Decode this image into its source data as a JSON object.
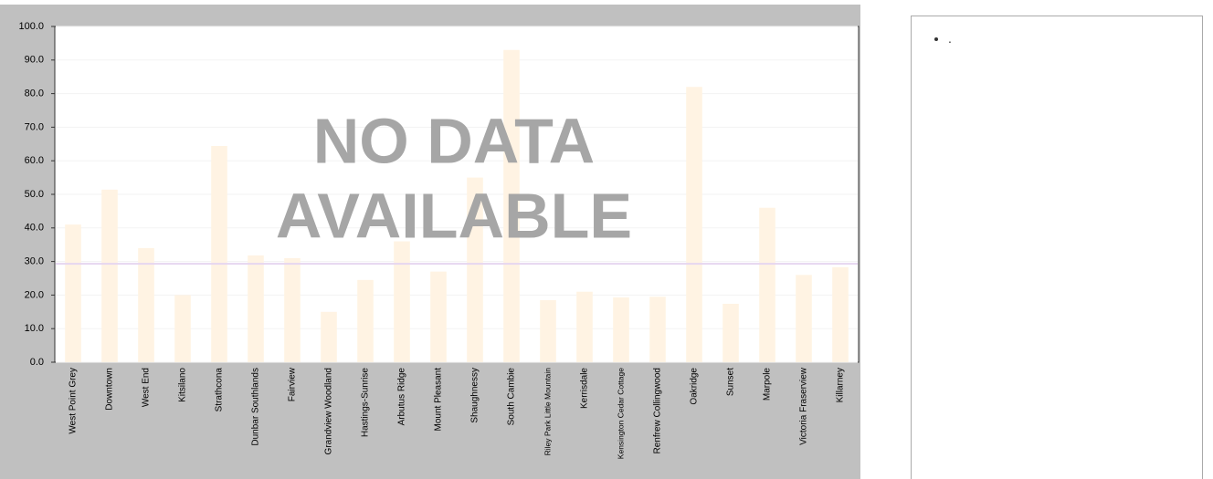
{
  "chart_data": {
    "type": "bar",
    "categories": [
      "West Point Grey",
      "Downtown",
      "West End",
      "Kitsilano",
      "Strathcona",
      "Dunbar Southlands",
      "Fairview",
      "Grandview Woodland",
      "Hastings-Sunrise",
      "Arbutus Ridge",
      "Mount Pleasant",
      "Shaughnessy",
      "South Cambie",
      "Riley Park Little Mountain",
      "Kerrisdale",
      "Kensington Cedar Cottage",
      "Renfrew Collingwood",
      "Oakridge",
      "Sunset",
      "Marpole",
      "Victoria Fraserview",
      "Killarney"
    ],
    "values": [
      41,
      51.4,
      34,
      20,
      64.4,
      31.8,
      31,
      15,
      24.5,
      36,
      27,
      55,
      93,
      18.5,
      21,
      19.3,
      19.5,
      82,
      17.4,
      46,
      26,
      28.3
    ],
    "color": "#fff3e3",
    "reference_line": 29.3,
    "reference_color": "#e6d6f0",
    "ylim": [
      0,
      100
    ],
    "yticks": [
      {
        "value": 0,
        "label": "0.0"
      },
      {
        "value": 10,
        "label": "10.0"
      },
      {
        "value": 20,
        "label": "20.0"
      },
      {
        "value": 30,
        "label": "30.0"
      },
      {
        "value": 40,
        "label": "40.0"
      },
      {
        "value": 50,
        "label": "50.0"
      },
      {
        "value": 60,
        "label": "60.0"
      },
      {
        "value": 70,
        "label": "70.0"
      },
      {
        "value": 80,
        "label": "80.0"
      },
      {
        "value": 90,
        "label": "90.0"
      },
      {
        "value": 100,
        "label": "100.0"
      }
    ],
    "grid": true,
    "overlay": [
      "NO DATA",
      "AVAILABLE"
    ]
  },
  "side_panel": {
    "items": [
      "."
    ]
  }
}
